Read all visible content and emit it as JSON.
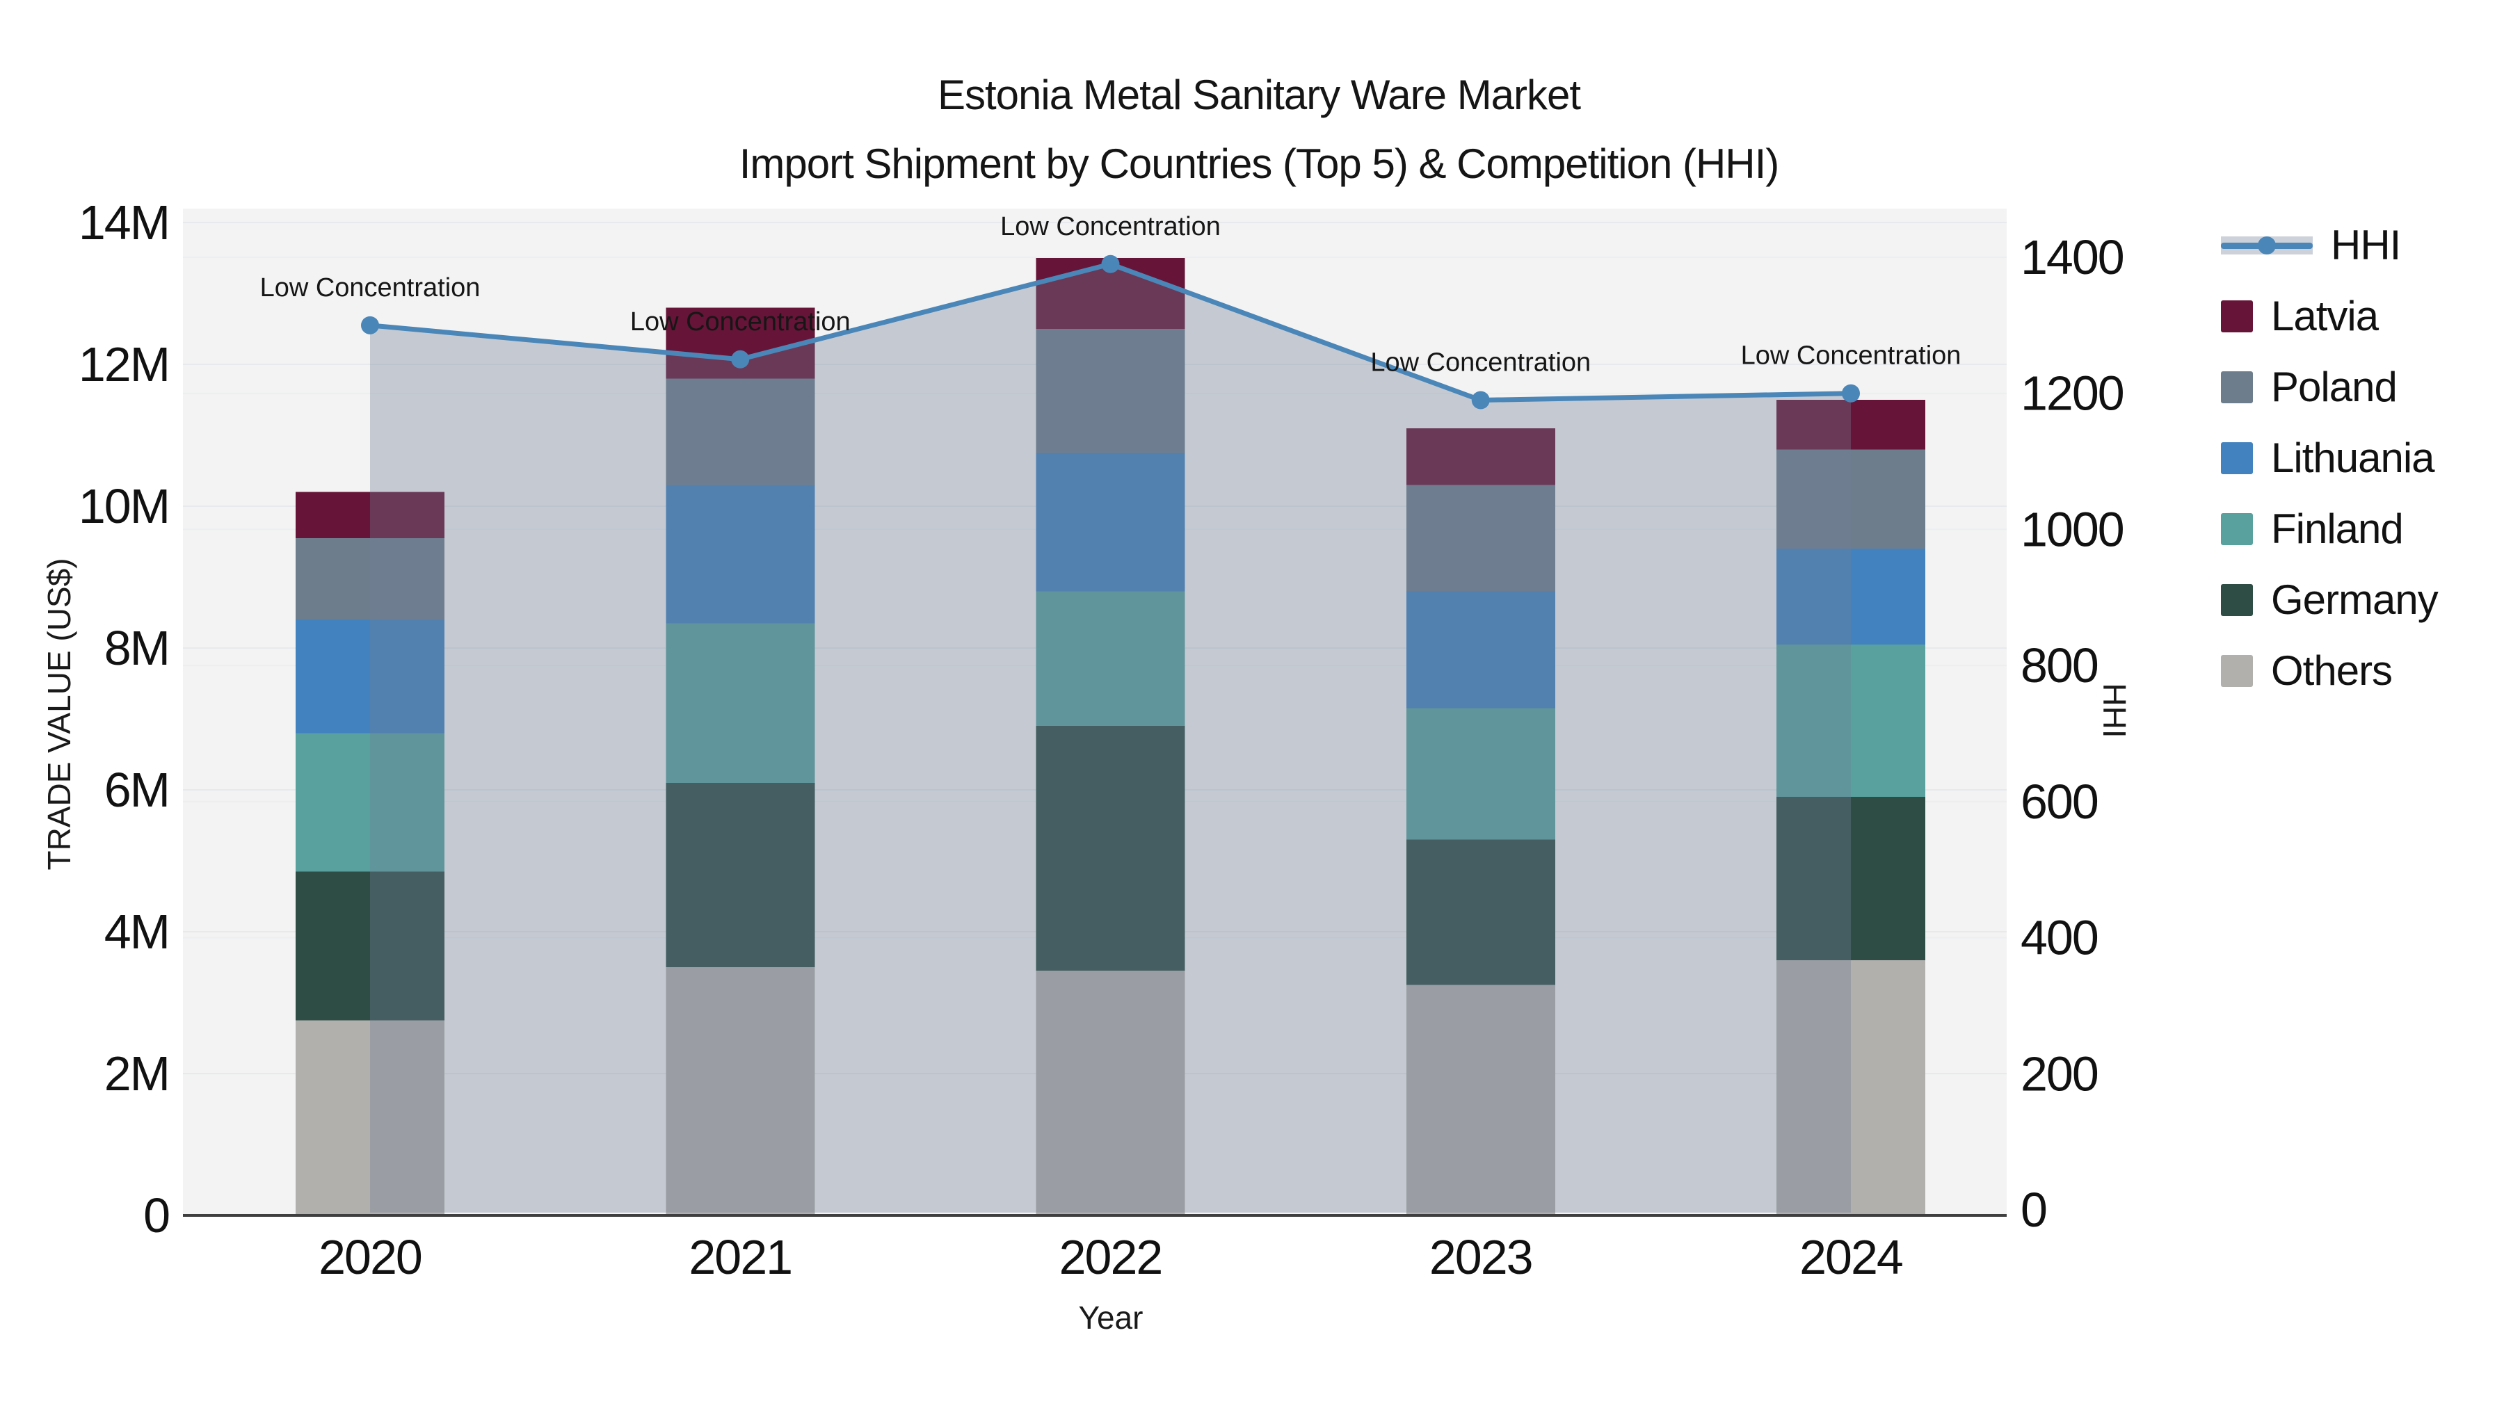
{
  "title": {
    "line1": "Estonia Metal Sanitary Ware Market",
    "line2": "Import Shipment by Countries (Top 5) & Competition (HHI)"
  },
  "chart_data": {
    "type": "combo",
    "subtypes": [
      "stacked-bar",
      "line-with-area"
    ],
    "categories": [
      "2020",
      "2021",
      "2022",
      "2023",
      "2024"
    ],
    "value_unit": "US$ millions",
    "series": [
      {
        "name": "Others",
        "color": "#b1b0ad",
        "values": [
          2.75,
          3.5,
          3.45,
          3.25,
          3.6
        ]
      },
      {
        "name": "Germany",
        "color": "#2d4d45",
        "values": [
          2.1,
          2.6,
          3.45,
          2.05,
          2.3
        ]
      },
      {
        "name": "Finland",
        "color": "#58a19e",
        "values": [
          1.95,
          2.25,
          1.9,
          1.85,
          2.15
        ]
      },
      {
        "name": "Lithuania",
        "color": "#4283bf",
        "values": [
          1.6,
          1.95,
          1.95,
          1.65,
          1.35
        ]
      },
      {
        "name": "Poland",
        "color": "#6e7d8c",
        "values": [
          1.15,
          1.5,
          1.75,
          1.5,
          1.4
        ]
      },
      {
        "name": "Latvia",
        "color": "#661437",
        "values": [
          0.65,
          1.0,
          1.0,
          0.8,
          0.7
        ]
      }
    ],
    "stack_totals_musd": [
      10.2,
      12.8,
      13.5,
      11.1,
      11.5
    ],
    "hhi": {
      "name": "HHI",
      "values": [
        1300,
        1250,
        1390,
        1190,
        1200
      ],
      "line_color": "#4a86b8",
      "marker_color": "#4a86b8",
      "area_fill": "rgba(113,127,150,0.35)"
    },
    "annotations": [
      {
        "text": "Low Concentration",
        "category": "2020"
      },
      {
        "text": "Low Concentration",
        "category": "2021"
      },
      {
        "text": "Low Concentration",
        "category": "2022"
      },
      {
        "text": "Low Concentration",
        "category": "2023"
      },
      {
        "text": "Low Concentration",
        "category": "2024"
      }
    ],
    "y_left": {
      "title": "TRADE VALUE (US$)",
      "ticks": [
        "0",
        "2M",
        "4M",
        "6M",
        "8M",
        "10M",
        "12M",
        "14M"
      ],
      "range_musd": [
        0,
        14.2
      ],
      "grid": true
    },
    "y_right": {
      "title": "HHI",
      "ticks": [
        "0",
        "200",
        "400",
        "600",
        "800",
        "1000",
        "1200",
        "1400"
      ],
      "range": [
        0,
        1470
      ],
      "grid": true
    },
    "x_axis": {
      "title": "Year"
    },
    "legend_position": "outside-top-right",
    "plot_bg": "#f3f3f3",
    "grid_color": "#e7e9ec",
    "axis_line_color": "#3f3f3f"
  },
  "legend": {
    "items": [
      {
        "label": "HHI",
        "type": "line-marker-band"
      },
      {
        "label": "Latvia",
        "type": "patch",
        "color": "#661437"
      },
      {
        "label": "Poland",
        "type": "patch",
        "color": "#6e7d8c"
      },
      {
        "label": "Lithuania",
        "type": "patch",
        "color": "#4283bf"
      },
      {
        "label": "Finland",
        "type": "patch",
        "color": "#58a19e"
      },
      {
        "label": "Germany",
        "type": "patch",
        "color": "#2d4d45"
      },
      {
        "label": "Others",
        "type": "patch",
        "color": "#b1b0ad"
      }
    ]
  }
}
